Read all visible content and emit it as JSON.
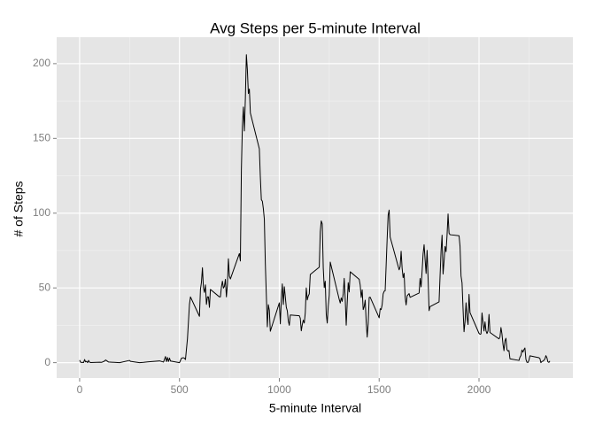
{
  "chart_data": {
    "type": "line",
    "title": "Avg Steps per 5-minute Interval",
    "x_label": "5-minute Interval",
    "y_label": "# of Steps",
    "x": [
      0,
      5,
      10,
      15,
      20,
      25,
      30,
      35,
      40,
      45,
      50,
      55,
      100,
      110,
      125,
      130,
      145,
      200,
      250,
      255,
      300,
      320,
      340,
      400,
      420,
      430,
      435,
      440,
      445,
      450,
      455,
      500,
      510,
      520,
      525,
      530,
      540,
      550,
      555,
      600,
      605,
      610,
      615,
      620,
      625,
      630,
      635,
      640,
      645,
      650,
      655,
      700,
      705,
      710,
      715,
      720,
      725,
      730,
      735,
      740,
      745,
      750,
      755,
      800,
      805,
      810,
      815,
      820,
      825,
      830,
      835,
      840,
      845,
      850,
      855,
      900,
      905,
      910,
      915,
      920,
      925,
      930,
      935,
      940,
      945,
      950,
      955,
      1000,
      1005,
      1010,
      1015,
      1020,
      1025,
      1030,
      1035,
      1040,
      1045,
      1050,
      1055,
      1100,
      1105,
      1110,
      1115,
      1120,
      1125,
      1130,
      1135,
      1140,
      1145,
      1150,
      1155,
      1200,
      1205,
      1210,
      1215,
      1220,
      1225,
      1230,
      1235,
      1240,
      1245,
      1250,
      1255,
      1300,
      1305,
      1310,
      1315,
      1320,
      1325,
      1330,
      1335,
      1340,
      1345,
      1350,
      1355,
      1400,
      1405,
      1410,
      1415,
      1420,
      1425,
      1430,
      1435,
      1440,
      1445,
      1450,
      1455,
      1500,
      1505,
      1510,
      1515,
      1520,
      1525,
      1530,
      1535,
      1540,
      1545,
      1550,
      1555,
      1600,
      1605,
      1610,
      1615,
      1620,
      1625,
      1630,
      1635,
      1640,
      1645,
      1650,
      1655,
      1700,
      1705,
      1710,
      1715,
      1720,
      1725,
      1730,
      1735,
      1740,
      1745,
      1750,
      1755,
      1800,
      1805,
      1810,
      1815,
      1820,
      1825,
      1830,
      1835,
      1840,
      1845,
      1850,
      1855,
      1900,
      1905,
      1910,
      1915,
      1920,
      1925,
      1930,
      1935,
      1940,
      1945,
      1950,
      1955,
      2000,
      2005,
      2010,
      2015,
      2020,
      2025,
      2030,
      2035,
      2040,
      2045,
      2050,
      2055,
      2100,
      2105,
      2110,
      2115,
      2120,
      2125,
      2130,
      2135,
      2140,
      2145,
      2150,
      2155,
      2200,
      2205,
      2210,
      2215,
      2220,
      2225,
      2230,
      2235,
      2240,
      2245,
      2250,
      2255,
      2300,
      2305,
      2310,
      2315,
      2320,
      2325,
      2330,
      2335,
      2340,
      2345,
      2350,
      2355
    ],
    "series": [
      {
        "color": "#000000",
        "values": [
          1.7,
          0.3,
          0.1,
          0.2,
          0.1,
          2.1,
          0.5,
          0.9,
          0,
          1.5,
          0.3,
          0.1,
          0.3,
          0.2,
          1.1,
          1.8,
          0.4,
          0,
          1.5,
          0.9,
          0,
          0.2,
          0.5,
          1.2,
          0.4,
          4.1,
          0.7,
          3.5,
          0.8,
          3.1,
          1.1,
          0,
          3.0,
          3.3,
          3.0,
          2.1,
          16,
          39,
          44,
          31,
          49,
          53.8,
          63.5,
          50,
          47,
          52,
          39,
          44,
          44,
          37,
          49,
          44,
          44,
          50.5,
          54.5,
          49.9,
          51,
          55.7,
          44,
          52,
          69.5,
          57.8,
          56,
          73,
          68,
          129,
          158,
          171,
          155,
          177,
          206,
          196,
          180,
          183,
          167,
          143,
          124,
          109,
          108,
          103,
          96,
          66,
          45,
          24,
          38.8,
          35,
          21,
          40,
          26,
          42,
          52.7,
          38.9,
          50.8,
          44,
          37,
          34.7,
          28,
          25,
          31.9,
          31.4,
          29.7,
          21.3,
          25.5,
          28.4,
          26.5,
          33.4,
          50,
          42,
          44.6,
          46,
          59,
          63.9,
          87.6,
          94.8,
          92.8,
          63.4,
          50.2,
          54.5,
          32.4,
          26.5,
          37.7,
          45,
          67.3,
          42.3,
          39.9,
          43.3,
          41,
          46.2,
          56.4,
          42.75,
          25.1,
          39.9,
          53.5,
          47.3,
          60.8,
          55.75,
          52,
          43.6,
          48.7,
          35.5,
          37.5,
          41.8,
          27.5,
          17.1,
          26.1,
          43.6,
          43.8,
          30,
          36.1,
          35.5,
          38.8,
          46,
          47.75,
          48.1,
          65.3,
          82.9,
          98.7,
          102.1,
          84,
          62.1,
          64.1,
          74.5,
          63.2,
          56.9,
          59.8,
          43.9,
          38.6,
          44.7,
          45.5,
          46.2,
          43.7,
          46.6,
          56.3,
          50.7,
          61.2,
          72.7,
          78.9,
          68.9,
          59.7,
          75.1,
          56.5,
          34.8,
          37.5,
          40.7,
          58,
          74.7,
          85.3,
          59.3,
          67.8,
          77.7,
          74.2,
          85.3,
          99.5,
          86.6,
          85.6,
          84.9,
          77.8,
          58,
          53.4,
          36.3,
          20.7,
          27.4,
          40,
          30.2,
          25.5,
          45.7,
          33.5,
          19.6,
          19,
          19.3,
          33.3,
          26.8,
          21.2,
          27.3,
          21.3,
          19.5,
          21.3,
          32.3,
          20.2,
          15.9,
          17.2,
          23.5,
          19.2,
          12.5,
          8,
          14.7,
          16.3,
          8.7,
          7.8,
          8.1,
          2.6,
          1.5,
          3.7,
          4.8,
          8.5,
          7.1,
          8.7,
          9.8,
          2.2,
          0.3,
          0.1,
          1.6,
          4.6,
          3.3,
          2.8,
          0,
          0.8,
          1,
          1.6,
          2.6,
          4.7,
          3.3,
          0.6,
          0.2,
          1.1
        ]
      }
    ],
    "xlim": [
      -115,
      2470
    ],
    "ylim": [
      -10.3,
      217.7
    ],
    "xticks": [
      0,
      500,
      1000,
      1500,
      2000
    ],
    "yticks": [
      0,
      50,
      100,
      150,
      200
    ],
    "grid": true
  }
}
